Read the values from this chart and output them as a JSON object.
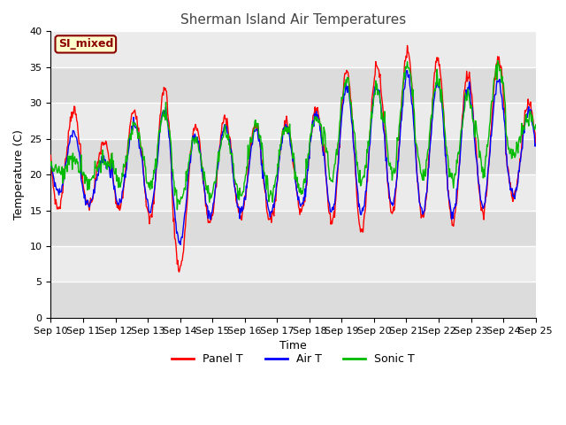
{
  "title": "Sherman Island Air Temperatures",
  "xlabel": "Time",
  "ylabel": "Temperature (C)",
  "ylim": [
    0,
    40
  ],
  "yticks": [
    0,
    5,
    10,
    15,
    20,
    25,
    30,
    35,
    40
  ],
  "x_labels": [
    "Sep 10",
    "Sep 11",
    "Sep 12",
    "Sep 13",
    "Sep 14",
    "Sep 15",
    "Sep 16",
    "Sep 17",
    "Sep 18",
    "Sep 19",
    "Sep 20",
    "Sep 21",
    "Sep 22",
    "Sep 23",
    "Sep 24",
    "Sep 25"
  ],
  "annotation_text": "SI_mixed",
  "annotation_color": "#8B0000",
  "annotation_bg": "#FFFFCC",
  "panel_color": "#FF0000",
  "air_color": "#0000FF",
  "sonic_color": "#00BB00",
  "plot_bg_dark": "#DCDCDC",
  "plot_bg_light": "#EBEBEB",
  "legend_labels": [
    "Panel T",
    "Air T",
    "Sonic T"
  ],
  "title_color": "#444444"
}
